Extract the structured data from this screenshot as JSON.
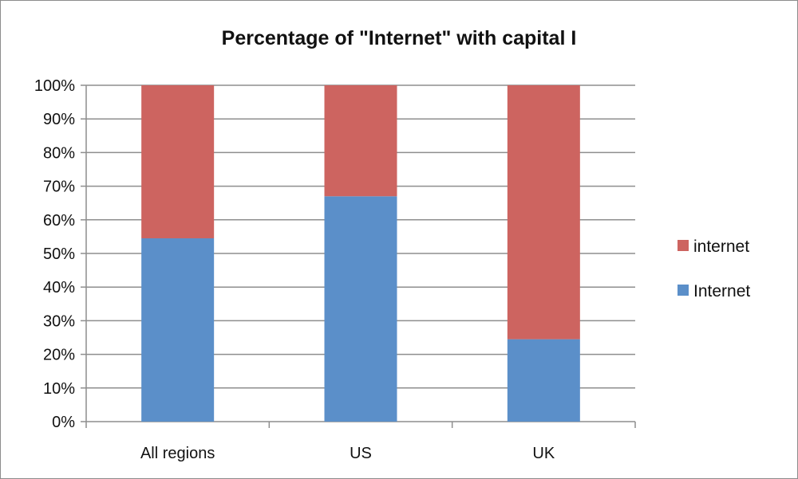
{
  "chart_data": {
    "type": "bar",
    "stacked": true,
    "title": "Percentage of \"Internet\" with capital I",
    "categories": [
      "All regions",
      "US",
      "UK"
    ],
    "series": [
      {
        "name": "Internet",
        "values": [
          54.5,
          67,
          24.5
        ],
        "color": "#5b8fc9"
      },
      {
        "name": "internet",
        "values": [
          45.5,
          33,
          75.5
        ],
        "color": "#cd6460"
      }
    ],
    "ylim": [
      0,
      100
    ],
    "yticks": [
      "0%",
      "10%",
      "20%",
      "30%",
      "40%",
      "50%",
      "60%",
      "70%",
      "80%",
      "90%",
      "100%"
    ],
    "grid": true,
    "legend_position": "right",
    "legend_order": [
      "internet",
      "Internet"
    ]
  }
}
